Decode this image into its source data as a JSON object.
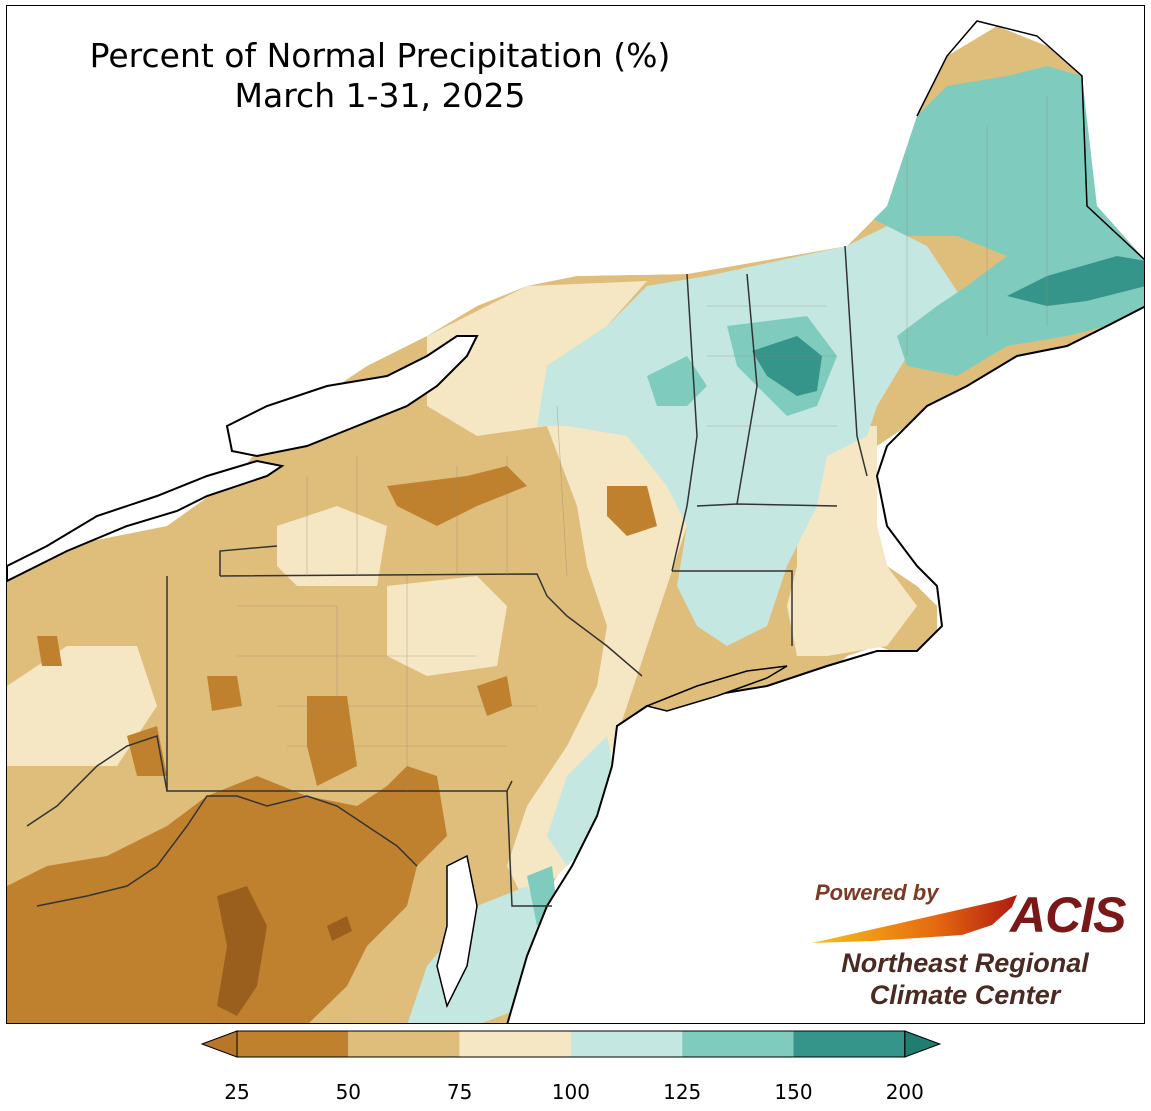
{
  "title_line1": "Percent of Normal Precipitation (%)",
  "title_line2": "March 1-31, 2025",
  "logo": {
    "powered_by": "Powered by",
    "acis": "ACIS",
    "org_line1": "Northeast Regional",
    "org_line2": "Climate Center"
  },
  "legend": {
    "ticks": [
      "25",
      "50",
      "75",
      "100",
      "125",
      "150",
      "200"
    ],
    "colors": [
      "#c0812f",
      "#dfbe7c",
      "#f5e6c4",
      "#c4e8e1",
      "#7fccbf",
      "#36958a"
    ],
    "extend_low_color": "#b7772a",
    "extend_high_color": "#1f7d72"
  },
  "palette": {
    "dark_brown": "#9a5f1c",
    "brown": "#c0812f",
    "tan": "#dfbe7c",
    "cream": "#f5e6c4",
    "light_teal": "#c4e8e1",
    "teal": "#7fccbf",
    "dark_teal": "#36958a"
  }
}
